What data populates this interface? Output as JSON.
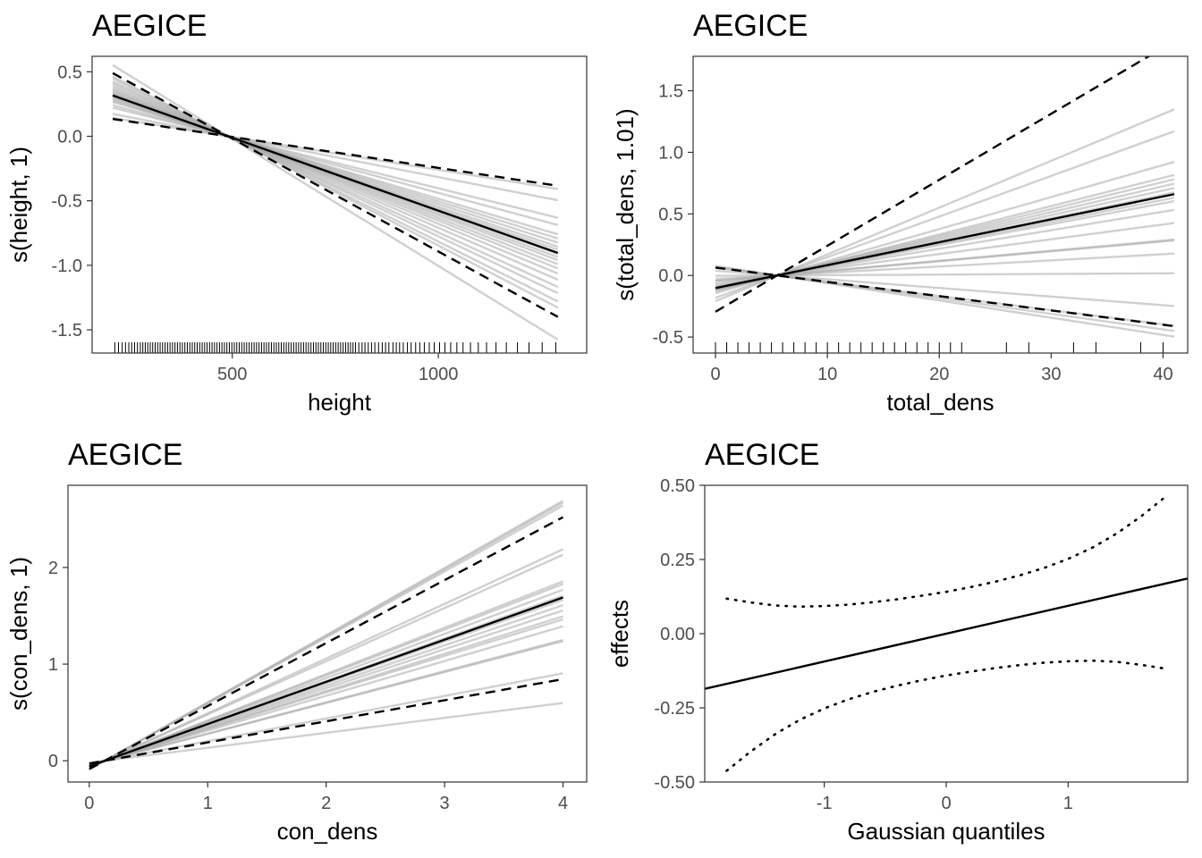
{
  "chart_data": [
    {
      "type": "line",
      "title": "AEGICE",
      "xlabel": "height",
      "ylabel": "s(height, 1)",
      "xlim": [
        160,
        1360
      ],
      "ylim": [
        -1.68,
        0.62
      ],
      "xticks": [
        500,
        1000
      ],
      "yticks": [
        -1.5,
        -1.0,
        -0.5,
        0.0,
        0.5
      ],
      "ytick_labels": [
        "-1.5",
        "-1.0",
        "-0.5",
        "0.0",
        "0.5"
      ],
      "pivot": 490,
      "x_range": [
        210,
        1290
      ],
      "fit_slope": -0.00113,
      "ci_slopes": [
        -0.00048,
        -0.00175
      ],
      "sample_slopes": [
        -0.00051,
        -0.00062,
        -0.00079,
        -0.00086,
        -0.00095,
        -0.00099,
        -0.00103,
        -0.00107,
        -0.0011,
        -0.00114,
        -0.00117,
        -0.0012,
        -0.00124,
        -0.00128,
        -0.00133,
        -0.00139,
        -0.00146,
        -0.00152,
        -0.0016,
        -0.00166,
        -0.00197
      ],
      "rug": [
        215,
        224,
        233,
        241,
        249,
        256,
        263,
        270,
        277,
        283,
        289,
        295,
        301,
        307,
        313,
        319,
        325,
        331,
        337,
        343,
        349,
        355,
        361,
        367,
        373,
        379,
        385,
        391,
        397,
        403,
        409,
        415,
        421,
        427,
        433,
        439,
        445,
        451,
        457,
        463,
        469,
        475,
        481,
        487,
        493,
        499,
        505,
        511,
        517,
        523,
        529,
        535,
        541,
        547,
        553,
        559,
        565,
        571,
        577,
        583,
        589,
        595,
        601,
        607,
        613,
        619,
        625,
        631,
        637,
        643,
        649,
        655,
        661,
        667,
        673,
        679,
        685,
        691,
        697,
        703,
        709,
        715,
        721,
        727,
        733,
        739,
        745,
        751,
        757,
        763,
        769,
        775,
        781,
        787,
        793,
        799,
        807,
        815,
        822,
        830,
        838,
        846,
        855,
        864,
        872,
        880,
        890,
        898,
        906,
        915,
        925,
        934,
        945,
        955,
        966,
        978,
        990,
        1003,
        1016,
        1030,
        1045,
        1060,
        1078,
        1097,
        1117,
        1140,
        1165,
        1192,
        1220,
        1252,
        1285
      ]
    },
    {
      "type": "line",
      "title": "AEGICE",
      "xlabel": "total_dens",
      "ylabel": "s(total_dens, 1.01)",
      "xlim": [
        -2,
        42.2
      ],
      "ylim": [
        -0.63,
        1.78
      ],
      "xticks": [
        0,
        10,
        20,
        30,
        40
      ],
      "yticks": [
        -0.5,
        0.0,
        0.5,
        1.0,
        1.5
      ],
      "ytick_labels": [
        "-0.5",
        "0.0",
        "0.5",
        "1.0",
        "1.5"
      ],
      "pivot": 5.5,
      "x_range": [
        0,
        41
      ],
      "fit_slope": 0.0186,
      "ci_slopes": [
        0.0536,
        -0.0116
      ],
      "sample_slopes": [
        -0.014,
        -0.0127,
        -0.0115,
        -0.007,
        0.0005,
        0.005,
        0.008,
        0.0082,
        0.012,
        0.015,
        0.017,
        0.0178,
        0.019,
        0.02,
        0.021,
        0.022,
        0.023,
        0.026,
        0.033,
        0.038
      ],
      "rug": [
        0,
        1,
        2,
        3,
        4,
        5,
        6,
        7,
        8,
        9,
        10,
        11,
        12,
        13,
        14,
        15,
        16,
        17,
        18,
        19,
        20,
        21,
        22,
        26,
        28,
        32,
        34,
        38,
        40
      ]
    },
    {
      "type": "line",
      "title": "AEGICE",
      "xlabel": "con_dens",
      "ylabel": "s(con_dens, 1)",
      "xlim": [
        -0.18,
        4.2
      ],
      "ylim": [
        -0.22,
        2.85
      ],
      "xticks": [
        0,
        1,
        2,
        3,
        4
      ],
      "yticks": [
        0,
        1,
        2
      ],
      "ytick_labels": [
        "0",
        "1",
        "2"
      ],
      "pivot": 0.13,
      "x_range": [
        0,
        4
      ],
      "fit_slope": 0.4365,
      "ci_slopes": [
        0.2182,
        0.6512
      ],
      "sample_slopes": [
        0.1546,
        0.2338,
        0.3198,
        0.3231,
        0.3595,
        0.3782,
        0.386,
        0.402,
        0.416,
        0.43,
        0.4413,
        0.4573,
        0.4727,
        0.4796,
        0.5507,
        0.5654,
        0.6823,
        0.69,
        0.695
      ]
    },
    {
      "type": "line",
      "title": "AEGICE",
      "xlabel": "Gaussian quantiles",
      "ylabel": "effects",
      "xlim": [
        -1.98,
        1.98
      ],
      "ylim": [
        -0.5,
        0.5
      ],
      "xticks": [
        -1,
        0,
        1
      ],
      "xtick_labels": [
        "-1",
        "0",
        "1"
      ],
      "yticks": [
        -0.5,
        -0.25,
        0.0,
        0.25,
        0.5
      ],
      "ytick_labels": [
        "-0.50",
        "-0.25",
        "0.00",
        "0.25",
        "0.50"
      ],
      "fit": {
        "x": [
          -1.98,
          1.98
        ],
        "y": [
          -0.186,
          0.186
        ]
      },
      "upper": {
        "x": [
          -1.8,
          -1.6,
          -1.4,
          -1.2,
          -1.0,
          -0.8,
          -0.6,
          -0.4,
          -0.2,
          0.0,
          0.2,
          0.4,
          0.6,
          0.8,
          1.0,
          1.2,
          1.4,
          1.6,
          1.8
        ],
        "y": [
          0.118,
          0.105,
          0.095,
          0.091,
          0.093,
          0.098,
          0.106,
          0.116,
          0.128,
          0.141,
          0.157,
          0.175,
          0.196,
          0.221,
          0.252,
          0.29,
          0.338,
          0.396,
          0.462
        ]
      },
      "lower": {
        "x": [
          -1.8,
          -1.6,
          -1.4,
          -1.2,
          -1.0,
          -0.8,
          -0.6,
          -0.4,
          -0.2,
          0.0,
          0.2,
          0.4,
          0.6,
          0.8,
          1.0,
          1.2,
          1.4,
          1.6,
          1.8
        ],
        "y": [
          -0.462,
          -0.396,
          -0.338,
          -0.29,
          -0.252,
          -0.221,
          -0.196,
          -0.175,
          -0.157,
          -0.141,
          -0.128,
          -0.116,
          -0.106,
          -0.098,
          -0.093,
          -0.091,
          -0.095,
          -0.105,
          -0.118
        ]
      }
    }
  ]
}
